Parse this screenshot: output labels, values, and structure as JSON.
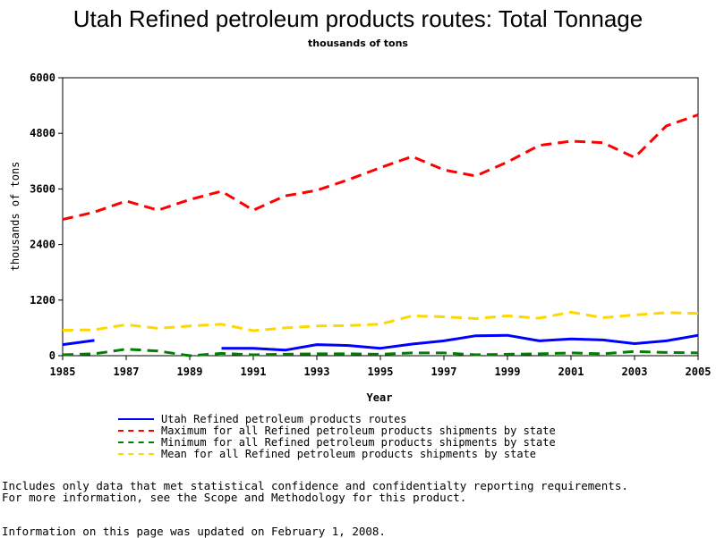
{
  "chart_data": {
    "type": "line",
    "title": "Utah Refined petroleum products routes: Total Tonnage",
    "subtitle": "thousands of tons",
    "xlabel": "Year",
    "ylabel": "thousands of tons",
    "xlim": [
      1985,
      2005
    ],
    "ylim": [
      0,
      6000
    ],
    "x_ticks": [
      "1985",
      "1987",
      "1989",
      "1991",
      "1993",
      "1995",
      "1997",
      "1999",
      "2001",
      "2003",
      "2005"
    ],
    "y_ticks": [
      "0",
      "1200",
      "2400",
      "3600",
      "4800",
      "6000"
    ],
    "x": [
      1985,
      1986,
      1987,
      1988,
      1989,
      1990,
      1991,
      1992,
      1993,
      1994,
      1995,
      1996,
      1997,
      1998,
      1999,
      2000,
      2001,
      2002,
      2003,
      2004,
      2005
    ],
    "series": [
      {
        "name": "Utah Refined petroleum products routes",
        "color": "#0000ff",
        "dash": "solid",
        "values": [
          240,
          330,
          null,
          null,
          null,
          160,
          160,
          120,
          240,
          220,
          160,
          250,
          320,
          430,
          440,
          320,
          360,
          340,
          260,
          320,
          440
        ]
      },
      {
        "name": "Maximum for all Refined petroleum products shipments by state",
        "color": "#ff0000",
        "dash": "dashed",
        "values": [
          2940,
          3100,
          3340,
          3140,
          3370,
          3550,
          3140,
          3450,
          3570,
          3800,
          4060,
          4300,
          4010,
          3880,
          4180,
          4540,
          4630,
          4600,
          4280,
          4960,
          5200
        ]
      },
      {
        "name": "Minimum for all Refined petroleum products shipments by state",
        "color": "#008000",
        "dash": "dashed",
        "values": [
          20,
          40,
          140,
          100,
          0,
          50,
          20,
          30,
          40,
          40,
          30,
          60,
          60,
          20,
          30,
          40,
          60,
          40,
          90,
          70,
          60
        ]
      },
      {
        "name": "Mean for all Refined petroleum products shipments by state",
        "color": "#ffd700",
        "dash": "dashed",
        "values": [
          550,
          560,
          670,
          590,
          640,
          680,
          540,
          600,
          640,
          650,
          680,
          860,
          840,
          800,
          860,
          810,
          940,
          820,
          880,
          930,
          910
        ]
      }
    ],
    "grid": false,
    "legend_position": "bottom"
  },
  "notes": {
    "line1": "Includes only data that met statistical confidence and confidentialty reporting requirements.",
    "line2": "For more information, see the Scope and Methodology for this product.",
    "line3": "Information on this page was updated on February 1, 2008."
  }
}
